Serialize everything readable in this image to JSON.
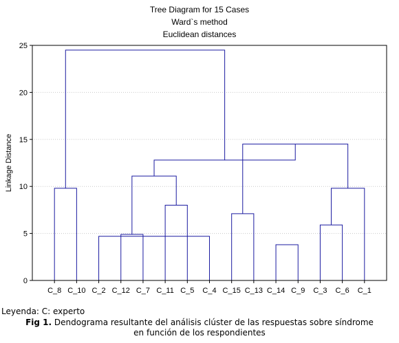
{
  "chart_data": {
    "type": "dendrogram",
    "title": [
      "Tree Diagram for 15 Cases",
      "Ward`s method",
      "Euclidean distances"
    ],
    "ylabel": "Linkage Distance",
    "ylim": [
      0,
      25
    ],
    "yticks": [
      0,
      5,
      10,
      15,
      20,
      25
    ],
    "leaves": [
      "C_8",
      "C_10",
      "C_2",
      "C_12",
      "C_7",
      "C_11",
      "C_5",
      "C_4",
      "C_15",
      "C_13",
      "C_14",
      "C_9",
      "C_3",
      "C_6",
      "C_1"
    ],
    "merges": [
      {
        "a": "C_2",
        "b": "C_4",
        "height": 4.7
      },
      {
        "a": "C_14",
        "b": "C_9",
        "height": 3.8
      },
      {
        "a": "C_3",
        "b": "C_6",
        "height": 5.9
      },
      {
        "a": "C_12",
        "b": "C_7",
        "height": 4.9
      },
      {
        "a": "C_15",
        "b": "C_13",
        "height": 7.1
      },
      {
        "a": "C_11",
        "b": "C_5",
        "height": 8.0
      },
      {
        "a": "C_8",
        "b": "C_10",
        "height": 9.8
      },
      {
        "a": "C_1",
        "b": "C_3",
        "height": 9.8
      },
      {
        "a": "C_15",
        "b": "C_1",
        "height": 14.5
      },
      {
        "a": "C_12",
        "b": "C_11",
        "height": 11.1
      },
      {
        "a": "C_12",
        "b": "C_15",
        "height": 12.8
      },
      {
        "a": "C_8",
        "b": "C_12",
        "height": 24.5
      }
    ],
    "line_color": "#1a1aa0",
    "grid": true
  },
  "legend": "Leyenda: C: experto",
  "caption": {
    "label": "Fig 1.",
    "text": " Dendograma resultante del análisis clúster de las respuestas sobre síndrome",
    "line2": "en función de los respondientes"
  }
}
